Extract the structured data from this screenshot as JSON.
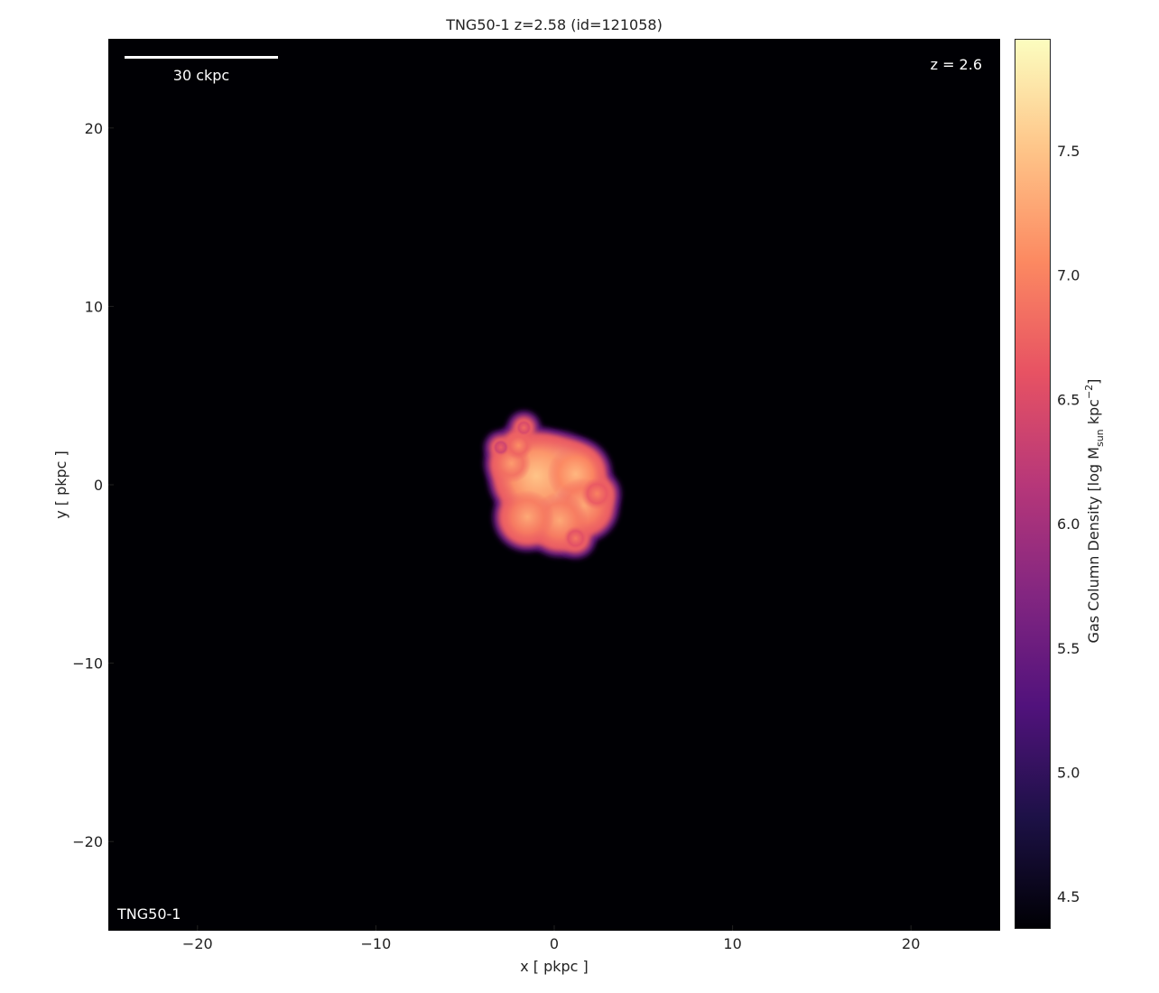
{
  "chart_data": {
    "type": "heatmap",
    "title": "TNG50-1 z=2.58 (id=121058)",
    "xlabel": "x [ pkpc ]",
    "ylabel": "y [ pkpc ]",
    "xlim": [
      -25,
      25
    ],
    "ylim": [
      -25,
      25
    ],
    "xticks": [
      -20,
      -10,
      0,
      10,
      20
    ],
    "yticks": [
      20,
      10,
      0,
      -10,
      -20
    ],
    "xtick_labels": [
      "−20",
      "−10",
      "0",
      "10",
      "20"
    ],
    "ytick_labels": [
      "20",
      "10",
      "0",
      "−10",
      "−20"
    ],
    "colorbar": {
      "label": "Gas Column Density [log M_sun kpc^-2]",
      "label_parts": {
        "pre": "Gas Column Density [log M",
        "sub": "sun",
        "mid": " kpc",
        "sup": "−2",
        "post": "]"
      },
      "range": [
        4.37,
        7.95
      ],
      "ticks": [
        4.5,
        5.0,
        5.5,
        6.0,
        6.5,
        7.0,
        7.5
      ],
      "tick_labels": [
        "4.5",
        "5.0",
        "5.5",
        "6.0",
        "6.5",
        "7.0",
        "7.5"
      ],
      "colormap": "magma",
      "colors": [
        "#000004",
        "#1d1147",
        "#51127c",
        "#832681",
        "#b73779",
        "#e75263",
        "#fc8961",
        "#fec488",
        "#fcfdbf"
      ]
    },
    "blobs": [
      {
        "x": 0.0,
        "y": 0.0,
        "r": 2.6,
        "v": 7.85
      },
      {
        "x": -1.0,
        "y": 0.5,
        "r": 2.3,
        "v": 7.5
      },
      {
        "x": 1.2,
        "y": 0.6,
        "r": 1.6,
        "v": 7.4
      },
      {
        "x": 1.6,
        "y": -1.2,
        "r": 1.6,
        "v": 7.3
      },
      {
        "x": 0.3,
        "y": -2.0,
        "r": 1.6,
        "v": 7.3
      },
      {
        "x": -1.5,
        "y": -1.8,
        "r": 1.5,
        "v": 7.3
      },
      {
        "x": -2.4,
        "y": 1.2,
        "r": 1.1,
        "v": 7.2
      },
      {
        "x": -2.0,
        "y": 2.2,
        "r": 0.8,
        "v": 7.1
      },
      {
        "x": -1.7,
        "y": 3.2,
        "r": 0.5,
        "v": 6.8
      },
      {
        "x": -3.0,
        "y": 2.1,
        "r": 0.5,
        "v": 6.7
      },
      {
        "x": 2.4,
        "y": -0.5,
        "r": 0.9,
        "v": 7.0
      },
      {
        "x": 1.2,
        "y": -3.0,
        "r": 0.7,
        "v": 6.9
      }
    ],
    "annotations": {
      "scale_bar": "30 ckpc",
      "redshift": "z = 2.6",
      "simulation": "TNG50-1"
    }
  }
}
